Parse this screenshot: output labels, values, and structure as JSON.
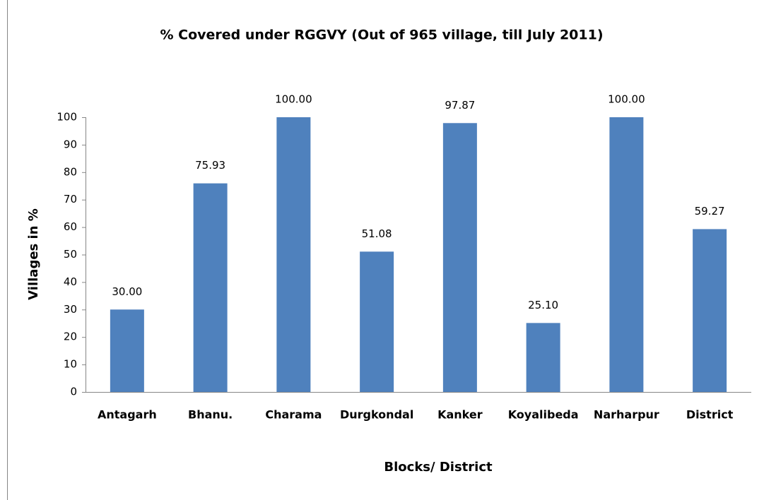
{
  "chart_data": {
    "type": "bar",
    "title": "% Covered under RGGVY (Out of 965 village, till July 2011)",
    "x_label": "Blocks/ District",
    "y_label": "Villages in %",
    "categories": [
      "Antagarh",
      "Bhanu.",
      "Charama",
      "Durgkondal",
      "Kanker",
      "Koyalibeda",
      "Narharpur",
      "District"
    ],
    "values": [
      30,
      75.93,
      100,
      51.08,
      97.87,
      25.1,
      100,
      59.27
    ],
    "value_labels": [
      "30.00",
      "75.93",
      "100.00",
      "51.08",
      "97.87",
      "25.10",
      "100.00",
      "59.27"
    ],
    "color": "#4f81bd",
    "ylim": [
      0,
      100
    ],
    "yticks": [
      0,
      10,
      20,
      30,
      40,
      50,
      60,
      70,
      80,
      90,
      100
    ],
    "grid": false
  }
}
